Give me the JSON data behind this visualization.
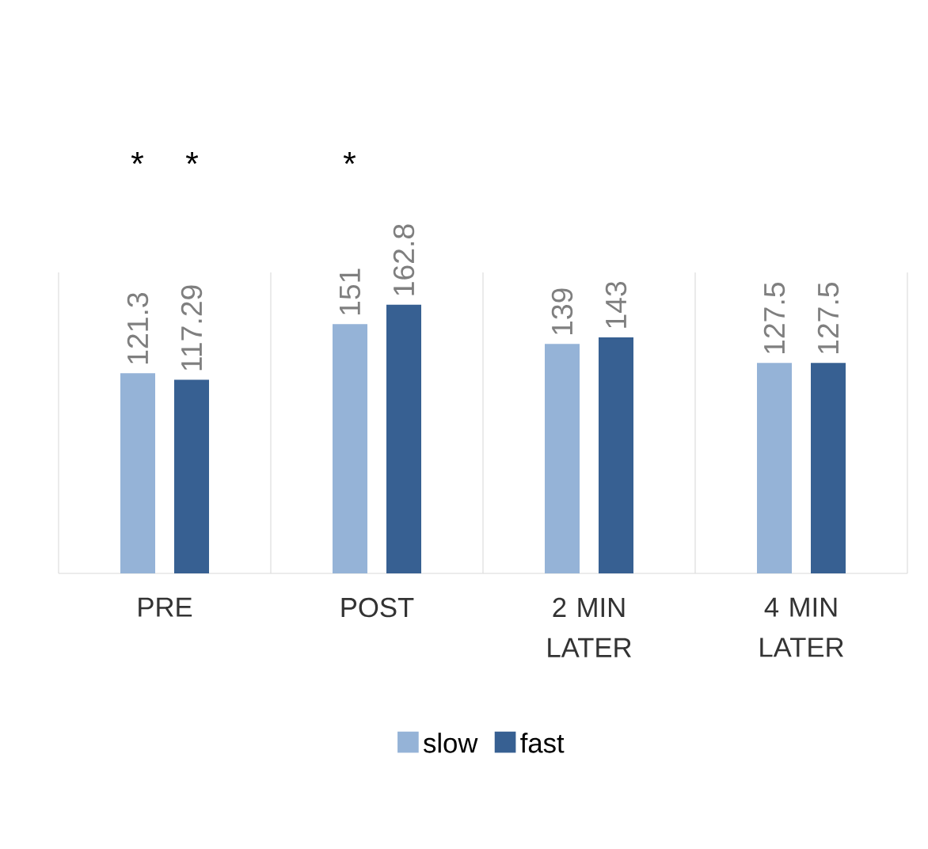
{
  "chart_data": {
    "type": "bar",
    "categories": [
      "PRE",
      "POST",
      "2 MIN LATER",
      "4 MIN LATER"
    ],
    "series": [
      {
        "name": "slow",
        "color": "#95b3d7",
        "values": [
          121.3,
          151,
          139,
          127.5
        ]
      },
      {
        "name": "fast",
        "color": "#376092",
        "values": [
          117.29,
          162.8,
          143,
          127.5
        ]
      }
    ],
    "data_labels": true,
    "tick_labels": "x",
    "grid": "x",
    "legend": "bottom",
    "annotations": [
      "*",
      "*",
      "*"
    ]
  }
}
